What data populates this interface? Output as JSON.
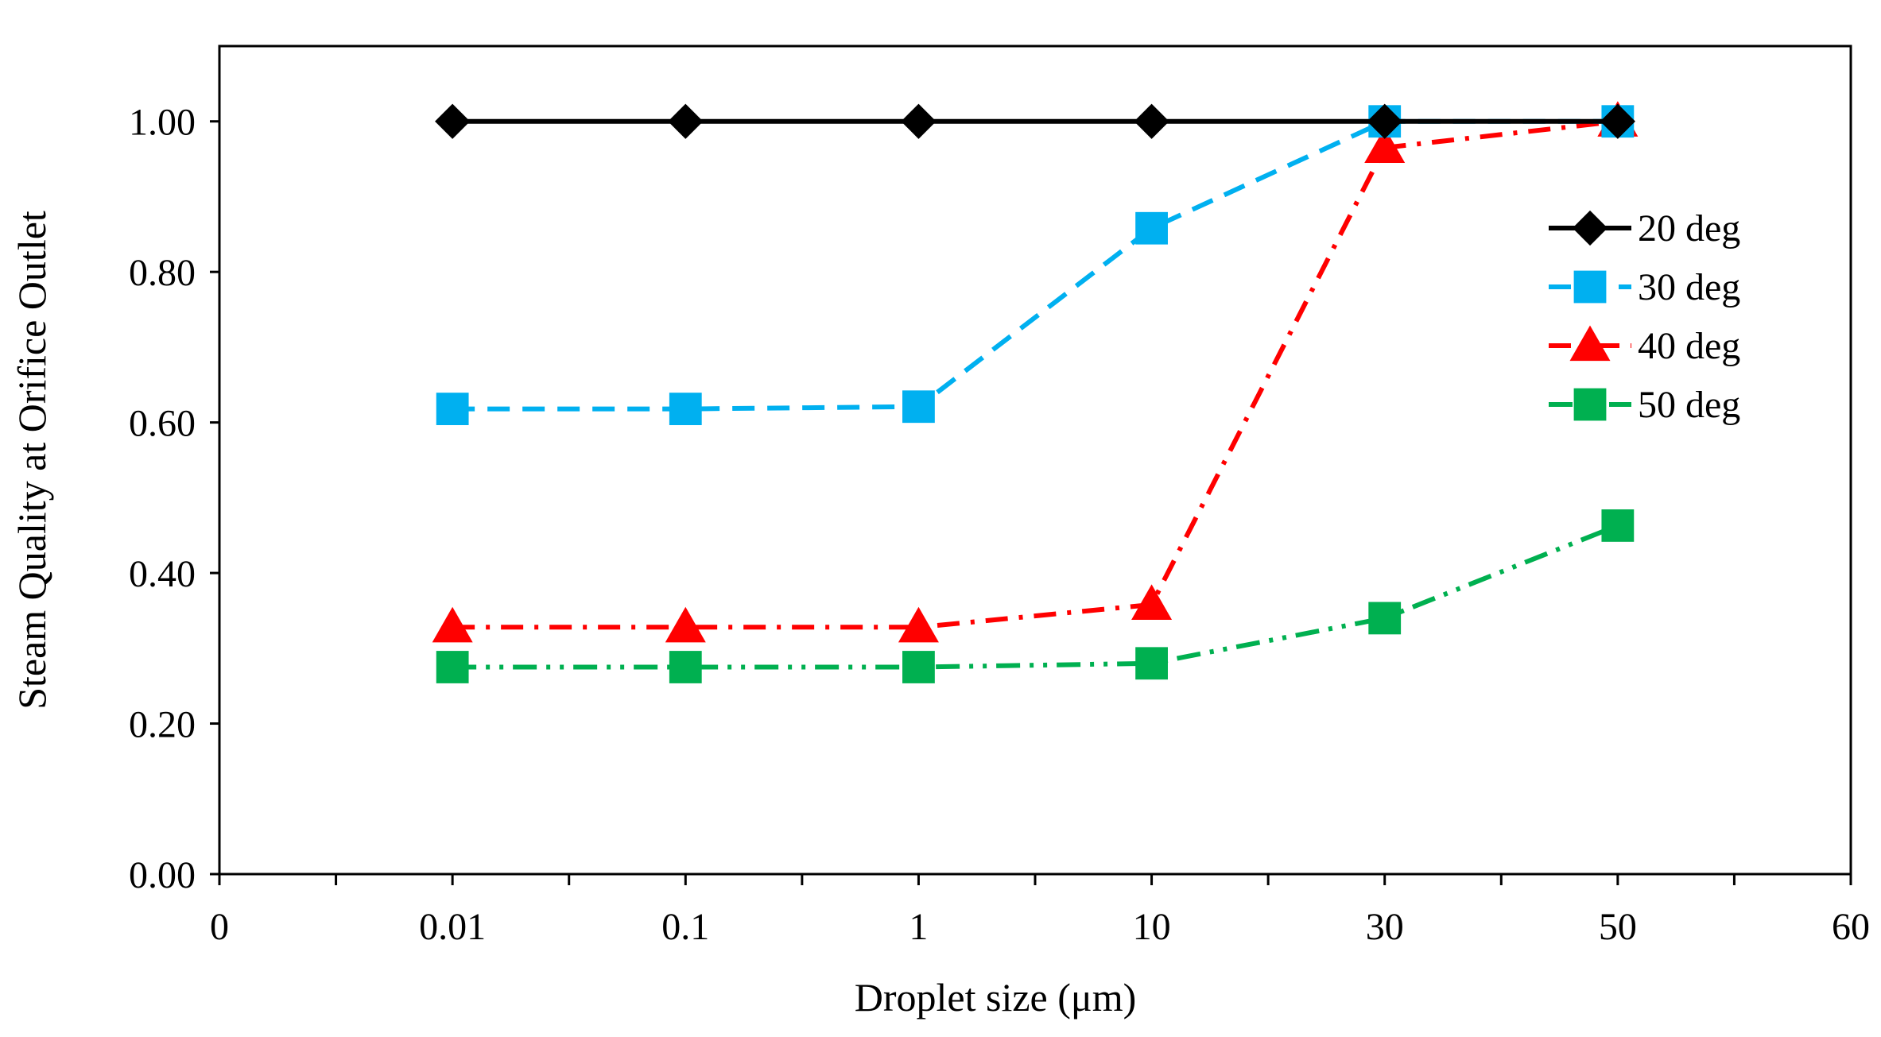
{
  "chart_data": {
    "type": "line",
    "title": "",
    "xlabel": "Droplet size (μm)",
    "ylabel": "Steam Quality at Orifice Outlet",
    "x_tick_labels": [
      "0",
      "0.01",
      "0.1",
      "1",
      "10",
      "30",
      "50",
      "60"
    ],
    "y_tick_labels": [
      "0.00",
      "0.20",
      "0.40",
      "0.60",
      "0.80",
      "1.00"
    ],
    "ylim": [
      0,
      1.1
    ],
    "grid": false,
    "legend_position": "right",
    "categories": [
      "0.01",
      "0.1",
      "1",
      "10",
      "30",
      "50"
    ],
    "series": [
      {
        "name": "20 deg",
        "color": "#000000",
        "marker": "diamond",
        "dash": "solid",
        "values": [
          1.0,
          1.0,
          1.0,
          1.0,
          1.0,
          1.0
        ]
      },
      {
        "name": "30 deg",
        "color": "#00b0f0",
        "marker": "square",
        "dash": "dash",
        "values": [
          0.618,
          0.618,
          0.621,
          0.858,
          1.0,
          1.0
        ]
      },
      {
        "name": "40 deg",
        "color": "#ff0000",
        "marker": "triangle",
        "dash": "dashdot",
        "values": [
          0.328,
          0.328,
          0.328,
          0.358,
          0.965,
          1.0
        ]
      },
      {
        "name": "50 deg",
        "color": "#00b050",
        "marker": "square",
        "dash": "dashdotdot",
        "values": [
          0.275,
          0.275,
          0.275,
          0.28,
          0.34,
          0.463
        ]
      }
    ]
  }
}
